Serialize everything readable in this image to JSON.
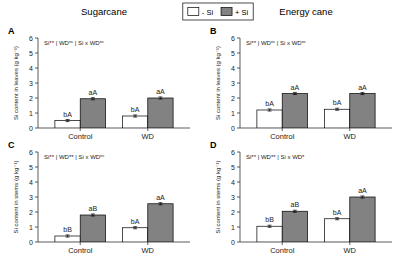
{
  "chart_data": [
    {
      "type": "bar",
      "title": "Sugarcane",
      "legend": "top",
      "grid": false,
      "annotations": [
        "A",
        "Si** | WDⁿˢ | Si x WDⁿˢ"
      ],
      "ylabel": "Si content in leaves (g kg⁻¹)",
      "categories": [
        "Control",
        "WD"
      ],
      "series": [
        {
          "name": "- Si",
          "color": "#ffffff",
          "values": [
            0.5,
            0.8
          ],
          "errors": [
            0.07,
            0.07
          ],
          "annotations": [
            "bA",
            "bA"
          ]
        },
        {
          "name": "+ Si",
          "color": "#828282",
          "values": [
            1.95,
            2.0
          ],
          "errors": [
            0.07,
            0.07
          ],
          "annotations": [
            "aA",
            "aA"
          ]
        }
      ],
      "ylim": [
        0,
        6
      ],
      "yticks": [
        0,
        1,
        2,
        3,
        4,
        5,
        6
      ]
    },
    {
      "type": "bar",
      "title": "Energy cane",
      "grid": false,
      "annotations": [
        "B",
        "Si** | WDⁿˢ | Si x WDⁿˢ"
      ],
      "ylabel": "Si content in leaves (g kg⁻¹)",
      "categories": [
        "Control",
        "WD"
      ],
      "series": [
        {
          "color": "#ffffff",
          "values": [
            1.2,
            1.25
          ],
          "errors": [
            0.07,
            0.07
          ],
          "annotations": [
            "bA",
            "bA"
          ]
        },
        {
          "color": "#828282",
          "values": [
            2.3,
            2.3
          ],
          "errors": [
            0.07,
            0.07
          ],
          "annotations": [
            "aA",
            "aA"
          ]
        }
      ],
      "ylim": [
        0,
        6
      ],
      "yticks": [
        0,
        1,
        2,
        3,
        4,
        5,
        6
      ]
    },
    {
      "type": "bar",
      "grid": false,
      "annotations": [
        "C",
        "Si** | WD** | Si x WDⁿˢ"
      ],
      "ylabel": "Si content in stems (g kg⁻¹)",
      "categories": [
        "Control",
        "WD"
      ],
      "series": [
        {
          "color": "#ffffff",
          "values": [
            0.4,
            0.95
          ],
          "errors": [
            0.07,
            0.07
          ],
          "annotations": [
            "bB",
            "bA"
          ]
        },
        {
          "color": "#828282",
          "values": [
            1.8,
            2.55
          ],
          "errors": [
            0.07,
            0.07
          ],
          "annotations": [
            "aB",
            "aA"
          ]
        }
      ],
      "ylim": [
        0,
        6
      ],
      "yticks": [
        0,
        1,
        2,
        3,
        4,
        5,
        6
      ]
    },
    {
      "type": "bar",
      "grid": false,
      "annotations": [
        "D",
        "Si** | WD** | Si x WD*"
      ],
      "ylabel": "Si content in stems (g kg⁻¹)",
      "categories": [
        "Control",
        "WD"
      ],
      "series": [
        {
          "color": "#ffffff",
          "values": [
            1.05,
            1.55
          ],
          "errors": [
            0.07,
            0.07
          ],
          "annotations": [
            "bB",
            "bA"
          ]
        },
        {
          "color": "#828282",
          "values": [
            2.05,
            3.0
          ],
          "errors": [
            0.07,
            0.07
          ],
          "annotations": [
            "aB",
            "aA"
          ]
        }
      ],
      "ylim": [
        0,
        6
      ],
      "yticks": [
        0,
        1,
        2,
        3,
        4,
        5,
        6
      ]
    }
  ]
}
